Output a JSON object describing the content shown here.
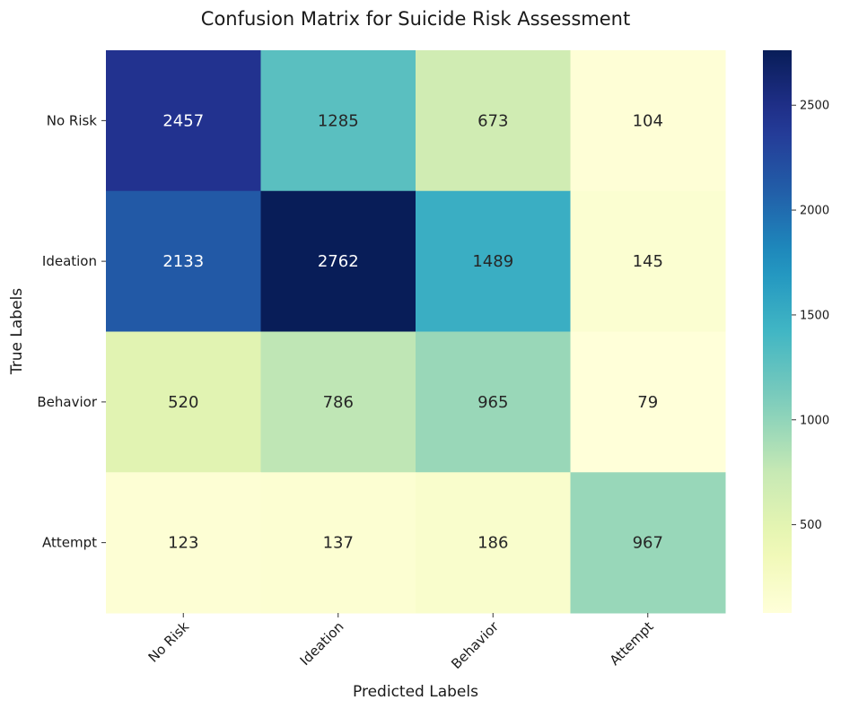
{
  "chart_data": {
    "type": "heatmap",
    "title": "Confusion Matrix for Suicide Risk Assessment",
    "xlabel": "Predicted Labels",
    "ylabel": "True Labels",
    "x_categories": [
      "No Risk",
      "Ideation",
      "Behavior",
      "Attempt"
    ],
    "y_categories": [
      "No Risk",
      "Ideation",
      "Behavior",
      "Attempt"
    ],
    "values": [
      [
        2457,
        1285,
        673,
        104
      ],
      [
        2133,
        2762,
        1489,
        145
      ],
      [
        520,
        786,
        965,
        79
      ],
      [
        123,
        137,
        186,
        967
      ]
    ],
    "colormap": "YlGnBu",
    "vmin": 79,
    "vmax": 2762,
    "colorbar_ticks": [
      500,
      1000,
      1500,
      2000,
      2500
    ],
    "colors": {
      "light_text": "#ffffff",
      "dark_text": "#262626"
    }
  }
}
